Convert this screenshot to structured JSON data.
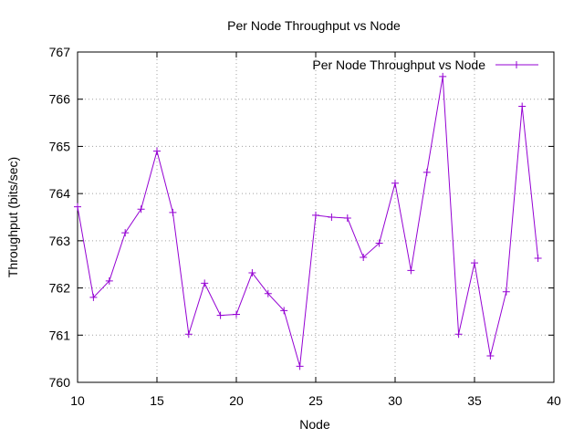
{
  "chart_data": {
    "type": "line",
    "title": "Per Node Throughput vs Node",
    "xlabel": "Node",
    "ylabel": "Throughput (bits/sec)",
    "xlim": [
      10,
      40
    ],
    "ylim": [
      760,
      767
    ],
    "xticks": [
      10,
      15,
      20,
      25,
      30,
      35,
      40
    ],
    "yticks": [
      760,
      761,
      762,
      763,
      764,
      765,
      766,
      767
    ],
    "grid": true,
    "legend_position": "top-right",
    "series": [
      {
        "name": "Per Node Throughput vs Node",
        "color": "#9400d3",
        "marker": "plus",
        "x": [
          10,
          11,
          12,
          13,
          14,
          15,
          16,
          17,
          18,
          19,
          20,
          21,
          22,
          23,
          24,
          25,
          26,
          27,
          28,
          29,
          30,
          31,
          32,
          33,
          34,
          35,
          36,
          37,
          38,
          39
        ],
        "y": [
          763.72,
          761.8,
          762.15,
          763.17,
          763.67,
          764.9,
          763.6,
          761.02,
          762.1,
          761.42,
          761.44,
          762.32,
          761.88,
          761.52,
          760.34,
          763.54,
          763.5,
          763.48,
          762.65,
          762.95,
          764.22,
          762.37,
          764.45,
          766.48,
          761.02,
          762.53,
          760.56,
          761.92,
          765.85,
          762.63
        ]
      }
    ]
  }
}
